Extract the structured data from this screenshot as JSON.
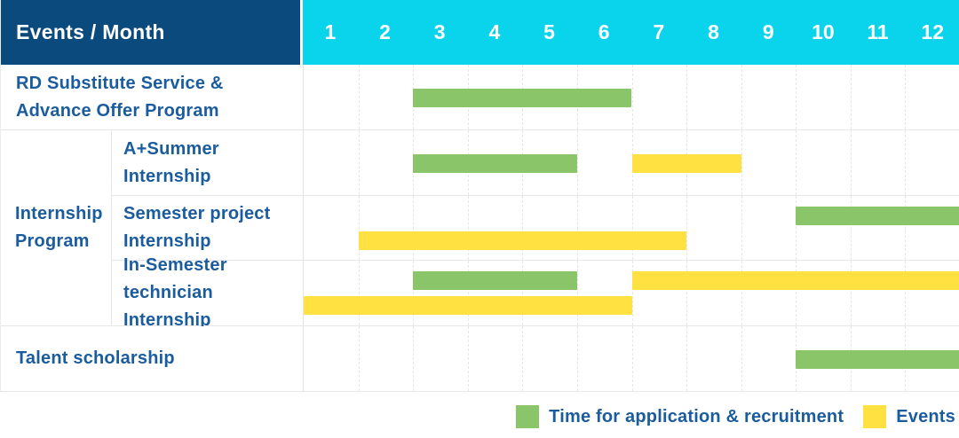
{
  "header": {
    "title": "Events / Month",
    "months": [
      "1",
      "2",
      "3",
      "4",
      "5",
      "6",
      "7",
      "8",
      "9",
      "10",
      "11",
      "12"
    ]
  },
  "colors": {
    "header_navy": "#0b4a7d",
    "header_cyan": "#0ad4ec",
    "label_blue": "#1a5c9e",
    "application_green": "#8bc56a",
    "event_yellow": "#ffe241",
    "grid_border": "#e7e7e7"
  },
  "chart_data": {
    "type": "gantt",
    "title": "Events / Month",
    "x_axis": {
      "label": "Month",
      "range": [
        1,
        12
      ],
      "ticks": [
        "1",
        "2",
        "3",
        "4",
        "5",
        "6",
        "7",
        "8",
        "9",
        "10",
        "11",
        "12"
      ]
    },
    "series_colors": {
      "application": "#8bc56a",
      "event": "#ffe241"
    },
    "group_label_lines": [
      "Internship",
      "Program"
    ],
    "rows": [
      {
        "group": "",
        "label": "RD Substitute Service & Advance Offer Program",
        "label_lines": [
          "RD Substitute Service &",
          "Advance Offer Program"
        ],
        "bars": [
          {
            "series": "application",
            "start_month": 3,
            "end_month": 6,
            "lane": "single"
          }
        ]
      },
      {
        "group": "Internship Program",
        "label": "A+Summer Internship",
        "label_lines": [
          "A+Summer",
          "Internship"
        ],
        "bars": [
          {
            "series": "application",
            "start_month": 3,
            "end_month": 5,
            "lane": "single"
          },
          {
            "series": "event",
            "start_month": 7,
            "end_month": 8,
            "lane": "single"
          }
        ]
      },
      {
        "group": "Internship Program",
        "label": "Semester project Internship",
        "label_lines": [
          "Semester project",
          "Internship"
        ],
        "bars": [
          {
            "series": "application",
            "start_month": 10,
            "end_month": 12,
            "lane": "top"
          },
          {
            "series": "event",
            "start_month": 2,
            "end_month": 7,
            "lane": "bottom"
          }
        ]
      },
      {
        "group": "Internship Program",
        "label": "In-Semester technician Internship",
        "label_lines": [
          "In-Semester",
          "technician Internship"
        ],
        "bars": [
          {
            "series": "application",
            "start_month": 3,
            "end_month": 5,
            "lane": "top"
          },
          {
            "series": "event",
            "start_month": 7,
            "end_month": 12,
            "lane": "top"
          },
          {
            "series": "event",
            "start_month": 1,
            "end_month": 6,
            "lane": "bottom"
          }
        ]
      },
      {
        "group": "",
        "label": "Talent scholarship",
        "label_lines": [
          "Talent scholarship"
        ],
        "bars": [
          {
            "series": "application",
            "start_month": 10,
            "end_month": 12,
            "lane": "single"
          }
        ]
      }
    ],
    "legend": [
      {
        "series": "application",
        "color": "#8bc56a",
        "label": "Time for application & recruitment"
      },
      {
        "series": "event",
        "color": "#ffe241",
        "label": "Events"
      }
    ],
    "legend_position": "bottom-right"
  }
}
